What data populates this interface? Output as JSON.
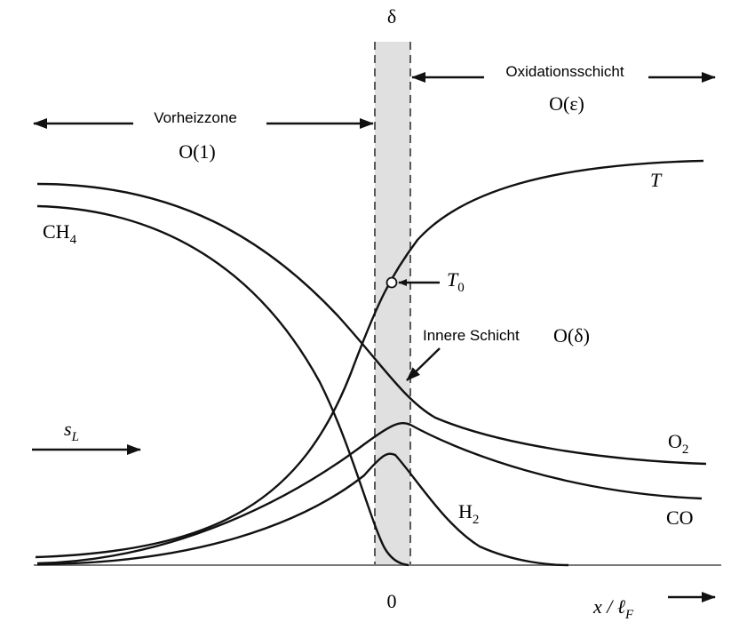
{
  "labels": {
    "delta": "δ",
    "oxidation_zone": "Oxidationsschicht",
    "oxidation_order": "O(ε)",
    "preheat_zone": "Vorheizzone",
    "preheat_order": "O(1)",
    "temperature": "T",
    "methane": {
      "base": "CH",
      "sub": "4"
    },
    "inner_temperature": {
      "base": "T",
      "sub": "0"
    },
    "inner_layer": "Innere Schicht",
    "inner_order": "O(δ)",
    "flame_speed": {
      "base": "s",
      "sub": "L"
    },
    "oxygen": {
      "base": "O",
      "sub": "2"
    },
    "hydrogen": {
      "base": "H",
      "sub": "2"
    },
    "carbon_monoxide": "CO",
    "origin": "0",
    "x_axis": {
      "base": "x / ℓ",
      "sub": "F"
    }
  }
}
